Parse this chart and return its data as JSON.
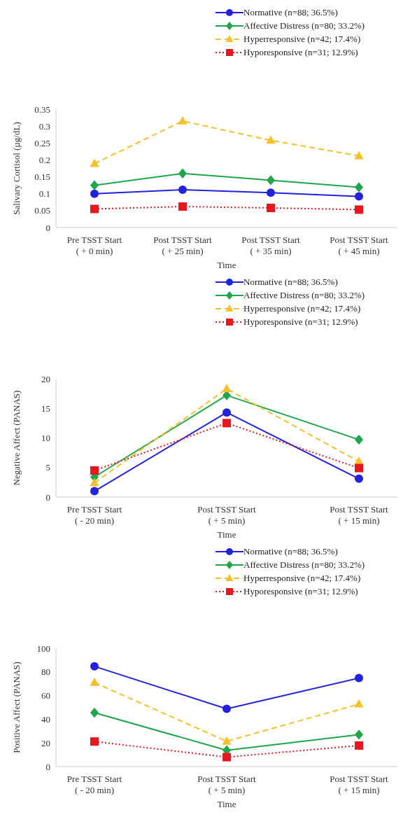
{
  "chart_data": [
    {
      "type": "line",
      "ylabel": "Salivary Cortisol (µg/dL)",
      "xlabel": "Time",
      "categories": [
        "Pre TSST Start\n( + 0 min)",
        "Post TSST Start\n( + 25 min)",
        "Post TSST Start\n( + 35 min)",
        "Post TSST Start\n( + 45 min)"
      ],
      "ylim": [
        0,
        0.35
      ],
      "yticks": [
        0,
        0.05,
        0.1,
        0.15,
        0.2,
        0.25,
        0.3,
        0.35
      ],
      "grid": false,
      "legend": "top right",
      "series": [
        {
          "name": "Normative (n=88; 36.5%)",
          "color": "#2222dd",
          "marker": "circle",
          "line_style": "solid",
          "values": [
            0.1,
            0.112,
            0.103,
            0.092
          ]
        },
        {
          "name": "Affective Distress (n=80; 33.2%)",
          "color": "#1fa64a",
          "marker": "diamond",
          "line_style": "solid",
          "values": [
            0.125,
            0.16,
            0.14,
            0.119
          ]
        },
        {
          "name": "Hyperresponsive (n=42; 17.4%)",
          "color": "#f5c02a",
          "marker": "triangle",
          "line_style": "dashed",
          "values": [
            0.189,
            0.315,
            0.258,
            0.212
          ]
        },
        {
          "name": "Hyporesponsive (n=31; 12.9%)",
          "color": "#e8161d",
          "marker": "square",
          "line_style": "dotted",
          "values": [
            0.055,
            0.062,
            0.058,
            0.053
          ]
        }
      ]
    },
    {
      "type": "line",
      "ylabel": "Negative Affect (PANAS)",
      "xlabel": "Time",
      "categories": [
        "Pre TSST Start\n( - 20 min)",
        "Post TSST Start\n( + 5 min)",
        "Post TSST Start\n( + 15 min)"
      ],
      "ylim": [
        0,
        20
      ],
      "yticks": [
        0,
        5,
        10,
        15,
        20
      ],
      "grid": false,
      "legend": "top right",
      "series": [
        {
          "name": "Normative (n=88; 36.5%)",
          "color": "#2222dd",
          "marker": "circle",
          "line_style": "solid",
          "values": [
            1.0,
            14.3,
            3.1
          ]
        },
        {
          "name": "Affective Distress (n=80; 33.2%)",
          "color": "#1fa64a",
          "marker": "diamond",
          "line_style": "solid",
          "values": [
            3.4,
            17.2,
            9.7
          ]
        },
        {
          "name": "Hyperresponsive (n=42; 17.4%)",
          "color": "#f5c02a",
          "marker": "triangle",
          "line_style": "dashed",
          "values": [
            2.4,
            18.3,
            6.0
          ]
        },
        {
          "name": "Hyporesponsive (n=31; 12.9%)",
          "color": "#e8161d",
          "marker": "square",
          "line_style": "dotted",
          "values": [
            4.5,
            12.5,
            4.9
          ]
        }
      ]
    },
    {
      "type": "line",
      "ylabel": "Positive Affect (PANAS)",
      "xlabel": "Time",
      "categories": [
        "Pre TSST Start\n( - 20 min)",
        "Post TSST Start\n( + 5 min)",
        "Post TSST Start\n( + 15 min)"
      ],
      "ylim": [
        0,
        100
      ],
      "yticks": [
        0,
        20,
        40,
        60,
        80,
        100
      ],
      "grid": false,
      "legend": "top right",
      "series": [
        {
          "name": "Normative (n=88; 36.5%)",
          "color": "#2222dd",
          "marker": "circle",
          "line_style": "solid",
          "values": [
            84.7,
            48.8,
            74.8
          ]
        },
        {
          "name": "Affective Distress (n=80; 33.2%)",
          "color": "#1fa64a",
          "marker": "diamond",
          "line_style": "solid",
          "values": [
            45.6,
            13.8,
            27.0
          ]
        },
        {
          "name": "Hyperresponsive (n=42; 17.4%)",
          "color": "#f5c02a",
          "marker": "triangle",
          "line_style": "dashed",
          "values": [
            71.0,
            21.4,
            52.8
          ]
        },
        {
          "name": "Hyporesponsive (n=31; 12.9%)",
          "color": "#e8161d",
          "marker": "square",
          "line_style": "dotted",
          "values": [
            21.2,
            8.0,
            17.8
          ]
        }
      ]
    }
  ]
}
